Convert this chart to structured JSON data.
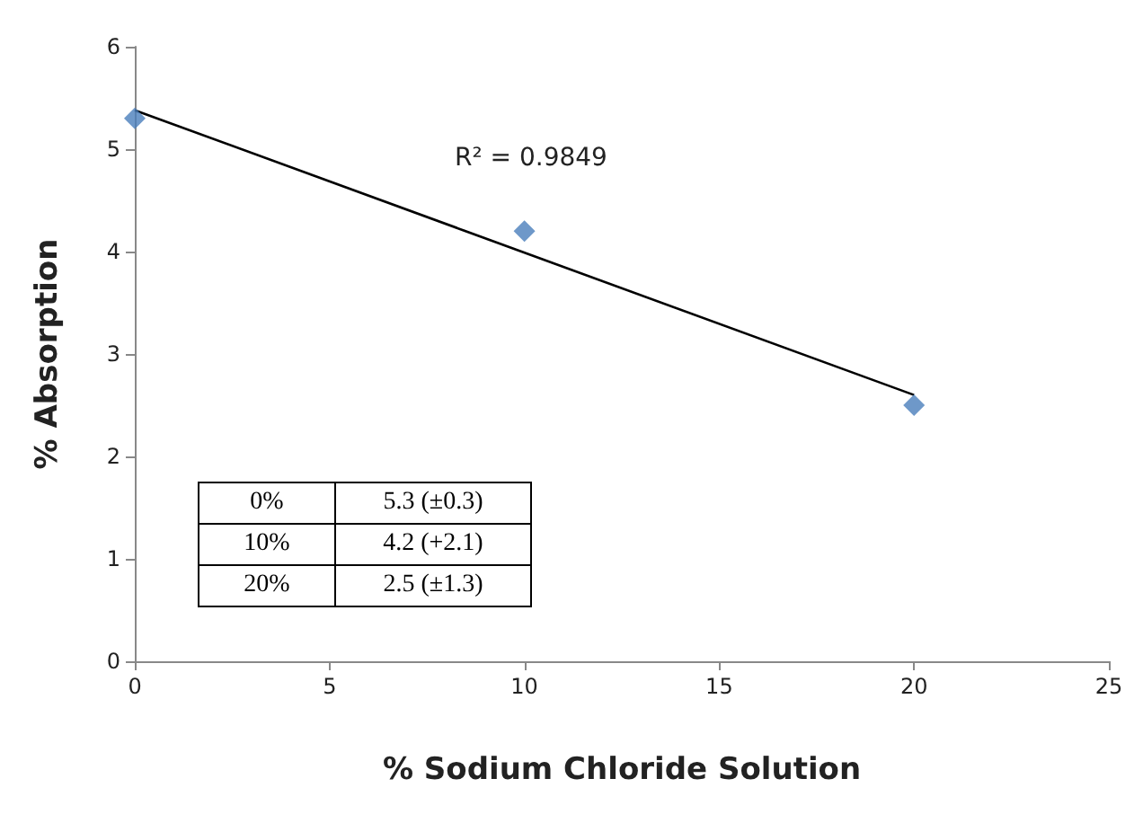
{
  "chart_data": {
    "type": "scatter",
    "xlabel": "% Sodium Chloride Solution",
    "ylabel": "% Absorption",
    "series": [
      {
        "color": "#4a7ebb",
        "marker": "diamond",
        "x": [
          0,
          10,
          20
        ],
        "values": [
          5.3,
          4.2,
          2.5
        ]
      },
      {
        "type": "line",
        "color": "#000000",
        "marker": "none",
        "x": [
          0,
          20
        ],
        "values": [
          5.38,
          2.6
        ]
      }
    ],
    "annotations": [
      "R² = 0.9849",
      "0%",
      "5.3 (±0.3)",
      "10%",
      "4.2 (+2.1)",
      "20%",
      "2.5 (±1.3)"
    ],
    "xlim": [
      0,
      25
    ],
    "xticks": [
      0,
      5,
      10,
      15,
      20,
      25
    ],
    "ylim": [
      0,
      6
    ],
    "yticks": [
      0,
      1,
      2,
      3,
      4,
      5,
      6
    ],
    "grid": false
  }
}
